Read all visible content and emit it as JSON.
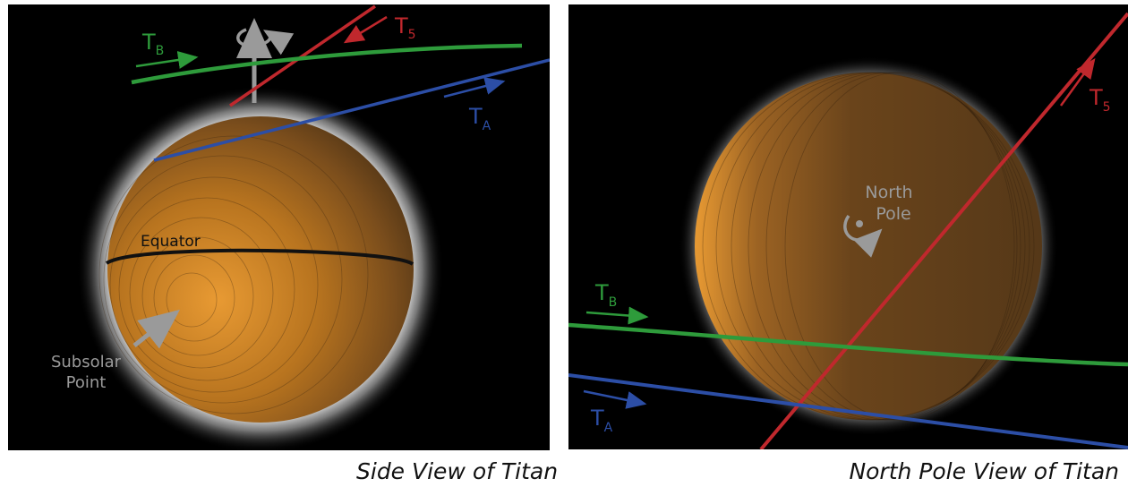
{
  "side_view": {
    "caption": "Side View of Titan",
    "equator_label": "Equator",
    "subsolar_label_line1": "Subsolar",
    "subsolar_label_line2": "Point",
    "flybys": [
      {
        "letter": "T",
        "sub": "B",
        "color": "#2e9b3b"
      },
      {
        "letter": "T",
        "sub": "5",
        "color": "#c0282d"
      },
      {
        "letter": "T",
        "sub": "A",
        "color": "#2c4ea6"
      }
    ]
  },
  "pole_view": {
    "caption": "North Pole View of Titan",
    "pole_label_line1": "North",
    "pole_label_line2": "Pole",
    "flybys": [
      {
        "letter": "T",
        "sub": "5",
        "color": "#c0282d"
      },
      {
        "letter": "T",
        "sub": "B",
        "color": "#2e9b3b"
      },
      {
        "letter": "T",
        "sub": "A",
        "color": "#2c4ea6"
      }
    ]
  },
  "colors": {
    "background": "#000000",
    "titan_light": "#e7952c",
    "titan_dark": "#5a3a17",
    "glow": "#ffffff",
    "axis_gray": "#9a9a9a"
  }
}
